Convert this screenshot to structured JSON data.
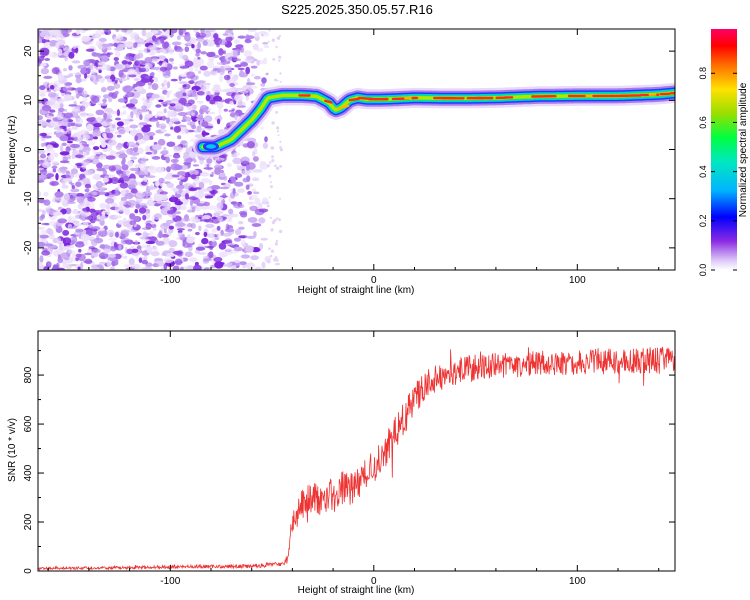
{
  "figure": {
    "title": "S225.2025.350.05.57.R16"
  },
  "chart_data": [
    {
      "type": "heatmap",
      "id": "spectrogram",
      "xlabel": "Height of straight line (km)",
      "ylabel": "Frequency (Hz)",
      "xlim": [
        -165,
        148
      ],
      "ylim": [
        -24.5,
        24.5
      ],
      "xticks": [
        -100,
        0,
        100
      ],
      "yticks": [
        -20,
        -10,
        0,
        10,
        20
      ],
      "noise_region_x": [
        -165,
        -52
      ],
      "colorbar": {
        "label": "Normalized spectral amplitude",
        "range": [
          0,
          0.98
        ],
        "ticks": [
          0.0,
          0.2,
          0.4,
          0.6,
          0.8
        ],
        "tick_labels": [
          "0.0",
          "0.2",
          "0.4",
          "0.6",
          "0.8"
        ]
      },
      "ridge": {
        "description": "dominant frequency track",
        "x": [
          -84,
          -78,
          -70,
          -65,
          -60,
          -56,
          -52,
          -45,
          -35,
          -28,
          -22,
          -19,
          -16,
          -12,
          -8,
          -3,
          0,
          10,
          20,
          40,
          60,
          80,
          100,
          120,
          140,
          148
        ],
        "y": [
          0.5,
          0.5,
          2,
          4,
          6,
          8,
          10.5,
          11,
          11,
          10.8,
          9.5,
          8,
          8.5,
          10,
          10.5,
          10.2,
          10.2,
          10.3,
          10.5,
          10.4,
          10.5,
          10.8,
          10.9,
          10.9,
          11.2,
          11.5
        ],
        "peak_amplitude": 0.95
      }
    },
    {
      "type": "line",
      "id": "snr",
      "xlabel": "Height of straight line (km)",
      "ylabel": "SNR (10 * v/v)",
      "xlim": [
        -165,
        148
      ],
      "ylim": [
        0,
        980
      ],
      "xticks": [
        -100,
        0,
        100
      ],
      "yticks": [
        0,
        200,
        400,
        600,
        800
      ],
      "series": [
        {
          "name": "SNR",
          "color": "#ee3333",
          "trend_x": [
            -165,
            -60,
            -44,
            -42,
            -40,
            -35,
            -30,
            -25,
            -20,
            -15,
            -10,
            -5,
            0,
            5,
            10,
            15,
            20,
            25,
            30,
            40,
            50,
            60,
            70,
            80,
            90,
            100,
            110,
            120,
            130,
            140,
            148
          ],
          "trend_y": [
            10,
            20,
            30,
            50,
            220,
            270,
            290,
            300,
            320,
            340,
            330,
            400,
            420,
            480,
            560,
            620,
            700,
            760,
            780,
            810,
            830,
            840,
            840,
            850,
            850,
            850,
            855,
            855,
            860,
            860,
            860
          ],
          "noise_amplitude": [
            5,
            8,
            10,
            20,
            60,
            70,
            70,
            70,
            70,
            70,
            70,
            70,
            70,
            70,
            70,
            70,
            70,
            60,
            60,
            55,
            55,
            50,
            50,
            50,
            50,
            50,
            55,
            55,
            55,
            55,
            55
          ]
        }
      ]
    }
  ]
}
